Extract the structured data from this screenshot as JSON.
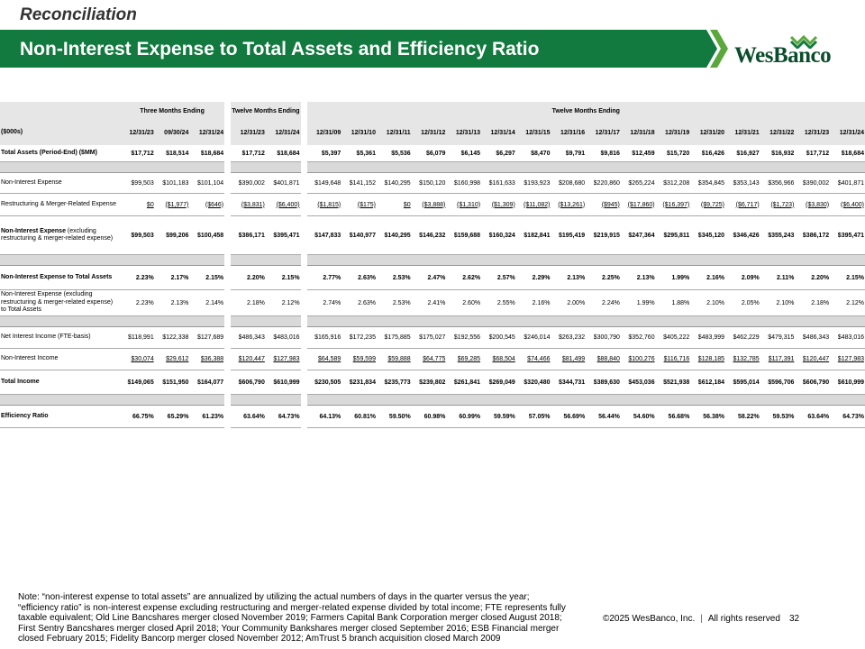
{
  "header": {
    "section": "Reconciliation",
    "title": "Non-Interest Expense to Total Assets and Efficiency Ratio",
    "logo": "WesBanco"
  },
  "table": {
    "unit_header": "($000s)",
    "groups": [
      {
        "label": "Three Months Ending",
        "columns": [
          "12/31/23",
          "09/30/24",
          "12/31/24"
        ]
      },
      {
        "label": "Twelve Months Ending",
        "columns": [
          "12/31/23",
          "12/31/24"
        ]
      },
      {
        "label": "Twelve Months Ending",
        "columns": [
          "12/31/09",
          "12/31/10",
          "12/31/11",
          "12/31/12",
          "12/31/13",
          "12/31/14",
          "12/31/15",
          "12/31/16",
          "12/31/17",
          "12/31/18",
          "12/31/19",
          "12/31/20",
          "12/31/21",
          "12/31/22",
          "12/31/23",
          "12/31/24"
        ]
      }
    ],
    "rows": [
      {
        "label": "Total Assets (Period-End) ($MM)",
        "bold": true,
        "cells": [
          "$17,712",
          "$18,514",
          "$18,684",
          "$17,712",
          "$18,684",
          "$5,397",
          "$5,361",
          "$5,536",
          "$6,079",
          "$6,145",
          "$6,297",
          "$8,470",
          "$9,791",
          "$9,816",
          "$12,459",
          "$15,720",
          "$16,426",
          "$16,927",
          "$16,932",
          "$17,712",
          "$18,684"
        ]
      },
      {
        "label": "Non-Interest Expense",
        "separator_before": true,
        "cells": [
          "$99,503",
          "$101,183",
          "$101,104",
          "$390,002",
          "$401,871",
          "$149,648",
          "$141,152",
          "$140,295",
          "$150,120",
          "$160,998",
          "$161,633",
          "$193,923",
          "$208,680",
          "$220,860",
          "$265,224",
          "$312,208",
          "$354,845",
          "$353,143",
          "$356,966",
          "$390,002",
          "$401,871"
        ]
      },
      {
        "label": "Restructuring & Merger-Related Expense",
        "underline": true,
        "cells": [
          "$0",
          "($1,977)",
          "($646)",
          "($3,831)",
          "($6,400)",
          "($1,815)",
          "($175)",
          "$0",
          "($3,888)",
          "($1,310)",
          "($1,309)",
          "($11,082)",
          "($13,261)",
          "($945)",
          "($17,860)",
          "($16,397)",
          "($9,725)",
          "($6,717)",
          "($1,723)",
          "($3,830)",
          "($6,400)"
        ]
      },
      {
        "label": "Non-Interest Expense",
        "label_note": "(excluding restructuring & merger-related expense)",
        "bold": true,
        "cells": [
          "$99,503",
          "$99,206",
          "$100,458",
          "$386,171",
          "$395,471",
          "$147,833",
          "$140,977",
          "$140,295",
          "$146,232",
          "$159,688",
          "$160,324",
          "$182,841",
          "$195,419",
          "$219,915",
          "$247,364",
          "$295,811",
          "$345,120",
          "$346,426",
          "$355,243",
          "$386,172",
          "$395,471"
        ]
      },
      {
        "label": "Non-Interest Expense to Total Assets",
        "bold": true,
        "separator_before": true,
        "cells": [
          "2.23%",
          "2.17%",
          "2.15%",
          "2.20%",
          "2.15%",
          "2.77%",
          "2.63%",
          "2.53%",
          "2.47%",
          "2.62%",
          "2.57%",
          "2.29%",
          "2.13%",
          "2.25%",
          "2.13%",
          "1.99%",
          "2.16%",
          "2.09%",
          "2.11%",
          "2.20%",
          "2.15%"
        ]
      },
      {
        "label": "Non-Interest Expense (excluding restructuring & merger-related expense) to Total Assets",
        "cells": [
          "2.23%",
          "2.13%",
          "2.14%",
          "2.18%",
          "2.12%",
          "2.74%",
          "2.63%",
          "2.53%",
          "2.41%",
          "2.60%",
          "2.55%",
          "2.16%",
          "2.00%",
          "2.24%",
          "1.99%",
          "1.88%",
          "2.10%",
          "2.05%",
          "2.10%",
          "2.18%",
          "2.12%"
        ]
      },
      {
        "label": "Net Interest Income (FTE-basis)",
        "separator_before": true,
        "cells": [
          "$118,991",
          "$122,338",
          "$127,689",
          "$486,343",
          "$483,016",
          "$165,916",
          "$172,235",
          "$175,885",
          "$175,027",
          "$192,556",
          "$200,545",
          "$246,014",
          "$263,232",
          "$300,790",
          "$352,760",
          "$405,222",
          "$483,999",
          "$462,229",
          "$479,315",
          "$486,343",
          "$483,016"
        ]
      },
      {
        "label": "Non-Interest Income",
        "underline": true,
        "cells": [
          "$30,074",
          "$29,612",
          "$36,388",
          "$120,447",
          "$127,983",
          "$64,589",
          "$59,599",
          "$59,888",
          "$64,775",
          "$69,285",
          "$68,504",
          "$74,466",
          "$81,499",
          "$88,840",
          "$100,276",
          "$116,716",
          "$128,185",
          "$132,785",
          "$117,391",
          "$120,447",
          "$127,983"
        ]
      },
      {
        "label": "Total Income",
        "bold": true,
        "cells": [
          "$149,065",
          "$151,950",
          "$164,077",
          "$606,790",
          "$610,999",
          "$230,505",
          "$231,834",
          "$235,773",
          "$239,802",
          "$261,841",
          "$269,049",
          "$320,480",
          "$344,731",
          "$389,630",
          "$453,036",
          "$521,938",
          "$612,184",
          "$595,014",
          "$596,706",
          "$606,790",
          "$610,999"
        ]
      },
      {
        "label": "Efficiency Ratio",
        "bold": true,
        "separator_before": true,
        "cells": [
          "66.75%",
          "65.29%",
          "61.23%",
          "63.64%",
          "64.73%",
          "64.13%",
          "60.81%",
          "59.50%",
          "60.98%",
          "60.99%",
          "59.59%",
          "57.05%",
          "56.69%",
          "56.44%",
          "54.60%",
          "56.68%",
          "56.38%",
          "58.22%",
          "59.53%",
          "63.64%",
          "64.73%"
        ]
      }
    ]
  },
  "note": [
    "Note: “non-interest expense to total assets” are annualized by utilizing the actual numbers of days in the quarter versus the year;",
    "“efficiency ratio” is non-interest expense excluding restructuring and merger-related expense divided by total income; FTE represents fully",
    "taxable equivalent; Old Line Bancshares merger closed November 2019; Farmers Capital Bank Corporation merger closed August 2018;",
    "First Sentry Bancshares merger closed April 2018; Your Community Bankshares merger closed September 2016; ESB Financial merger",
    "closed February 2015; Fidelity Bancorp merger closed November 2012; AmTrust 5 branch acquisition closed March 2009"
  ],
  "footer": {
    "copyright": "©2025 WesBanco, Inc.",
    "divider": "|",
    "rights": "All rights reserved",
    "page": "32"
  }
}
